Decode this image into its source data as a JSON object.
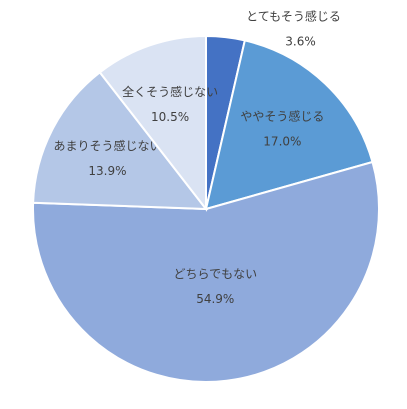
{
  "chart_data": {
    "type": "pie",
    "categories": [
      "とてもそう感じる",
      "ややそう感じる",
      "どちらでもない",
      "あまりそう感じない",
      "全くそう感じない"
    ],
    "values": [
      3.6,
      17.0,
      54.9,
      13.9,
      10.5
    ],
    "value_labels": [
      "3.6%",
      "17.0%",
      "54.9%",
      "13.9%",
      "10.5%"
    ],
    "colors": [
      "#4472c4",
      "#5b9bd5",
      "#8faadc",
      "#b4c7e7",
      "#dae3f3"
    ]
  }
}
